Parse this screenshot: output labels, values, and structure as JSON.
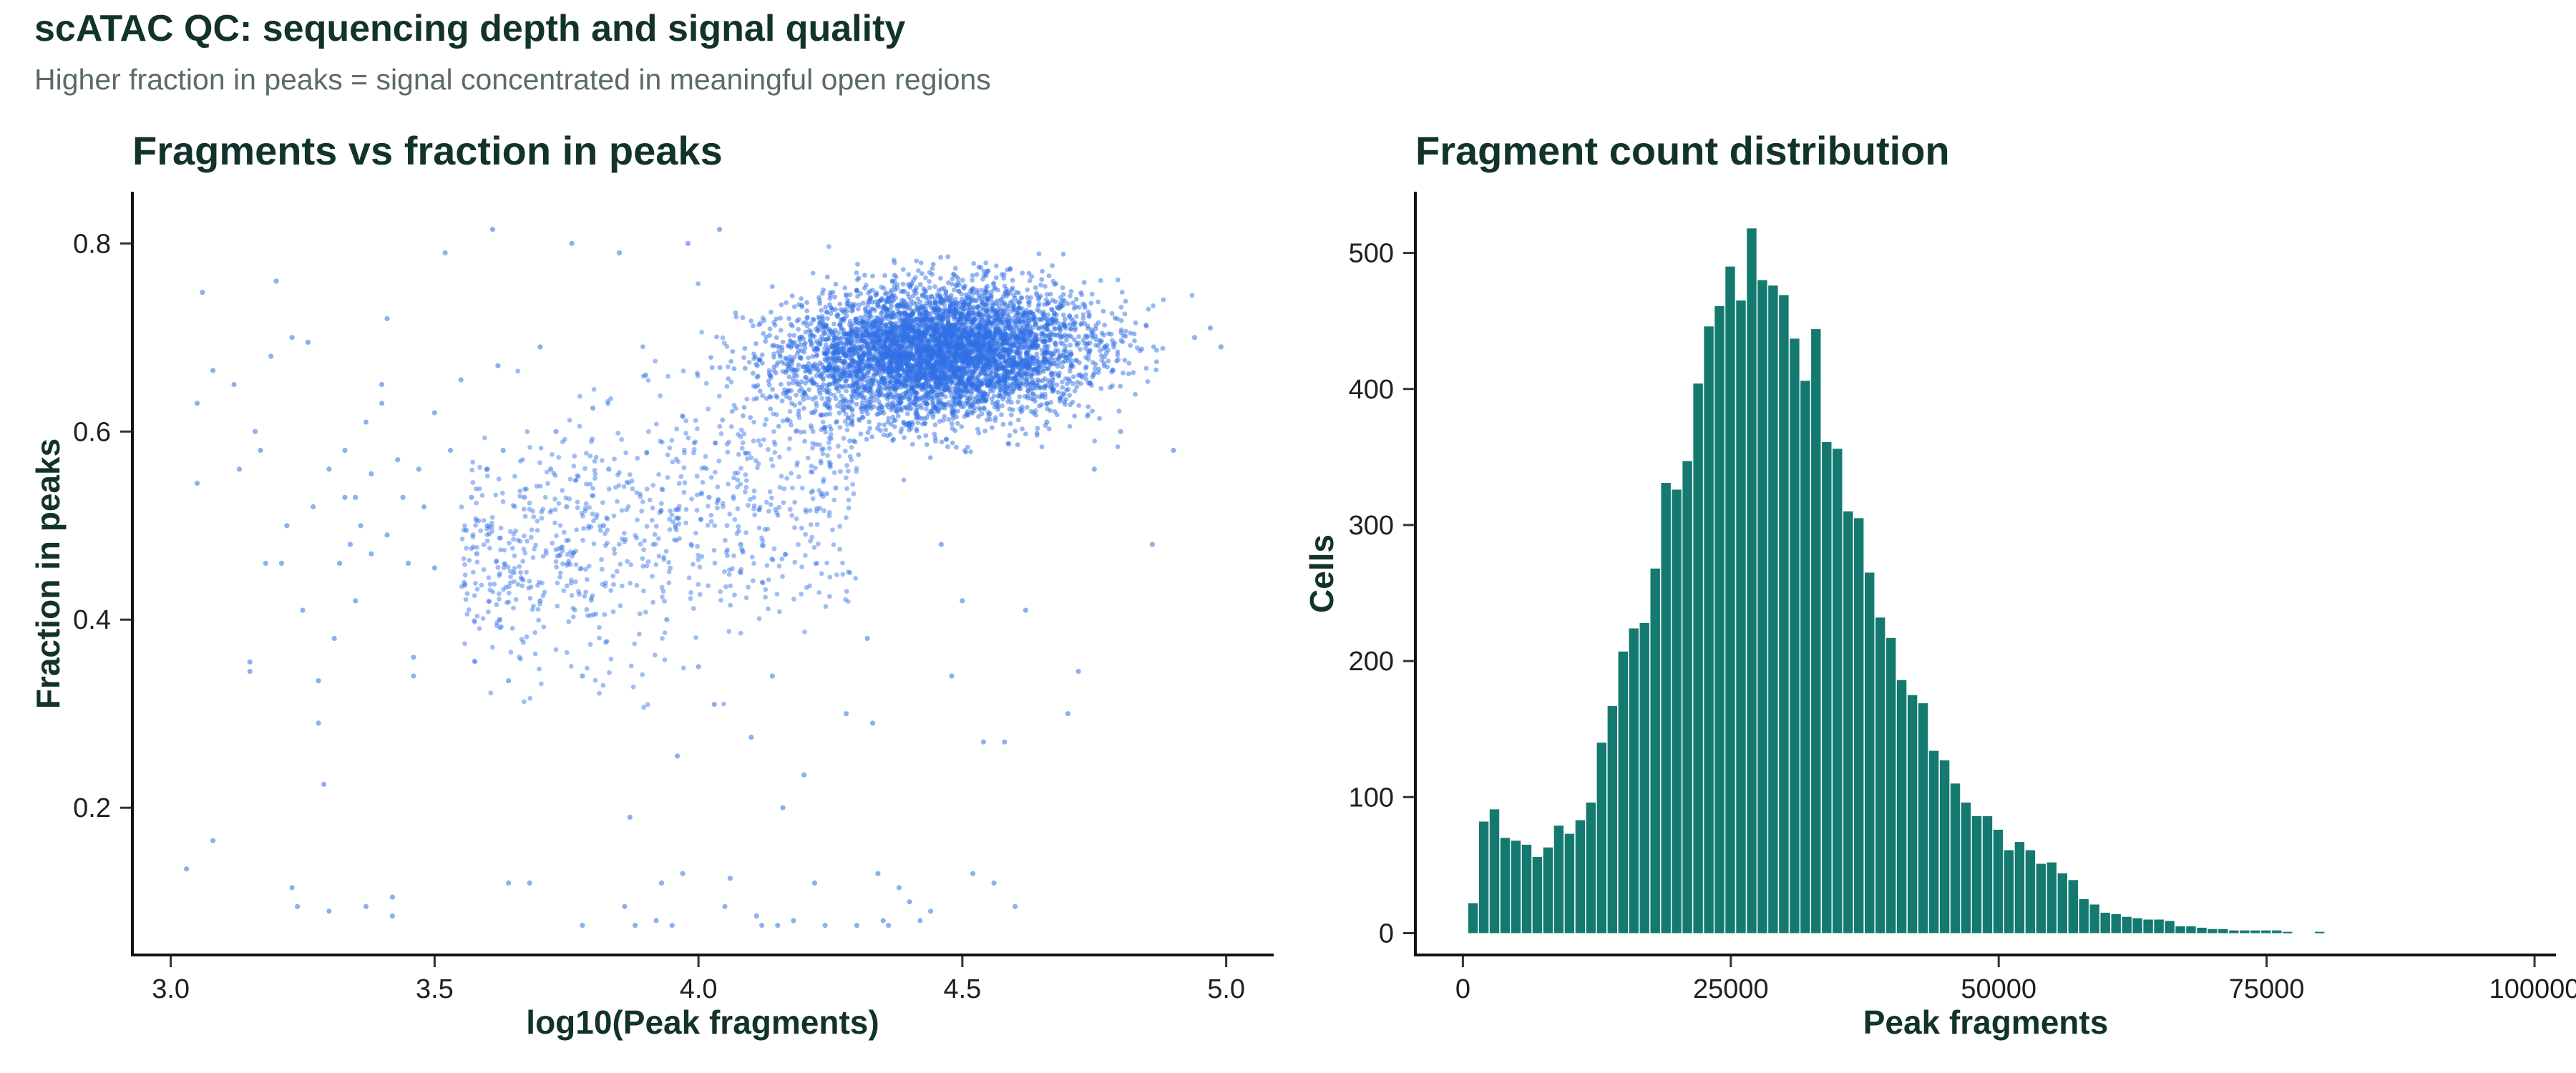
{
  "title": "scATAC QC: sequencing depth and signal quality",
  "subtitle": "Higher fraction in peaks = signal concentrated in meaningful open regions",
  "chart_data": [
    {
      "type": "scatter",
      "title": "Fragments vs fraction in peaks",
      "xlabel": "log10(Peak fragments)",
      "ylabel": "Fraction in peaks",
      "xlim": [
        2.93,
        5.09
      ],
      "ylim": [
        0.045,
        0.855
      ],
      "x_ticks": [
        "3.0",
        "3.5",
        "4.0",
        "4.5",
        "5.0"
      ],
      "y_ticks": [
        "0.2",
        "0.4",
        "0.6",
        "0.8"
      ],
      "point_color": "#2f6fe6",
      "grid": false,
      "points": [
        [
          3.03,
          0.135
        ],
        [
          3.05,
          0.545
        ],
        [
          3.05,
          0.63
        ],
        [
          3.06,
          0.748
        ],
        [
          3.08,
          0.665
        ],
        [
          3.08,
          0.165
        ],
        [
          3.12,
          0.65
        ],
        [
          3.13,
          0.56
        ],
        [
          3.15,
          0.355
        ],
        [
          3.15,
          0.345
        ],
        [
          3.16,
          0.6
        ],
        [
          3.17,
          0.58
        ],
        [
          3.18,
          0.46
        ],
        [
          3.19,
          0.68
        ],
        [
          3.2,
          0.76
        ],
        [
          3.21,
          0.46
        ],
        [
          3.22,
          0.5
        ],
        [
          3.23,
          0.7
        ],
        [
          3.23,
          0.115
        ],
        [
          3.24,
          0.095
        ],
        [
          3.25,
          0.41
        ],
        [
          3.26,
          0.695
        ],
        [
          3.27,
          0.52
        ],
        [
          3.28,
          0.29
        ],
        [
          3.28,
          0.335
        ],
        [
          3.29,
          0.225
        ],
        [
          3.3,
          0.56
        ],
        [
          3.3,
          0.09
        ],
        [
          3.31,
          0.38
        ],
        [
          3.32,
          0.46
        ],
        [
          3.33,
          0.53
        ],
        [
          3.33,
          0.58
        ],
        [
          3.34,
          0.48
        ],
        [
          3.35,
          0.42
        ],
        [
          3.35,
          0.53
        ],
        [
          3.36,
          0.5
        ],
        [
          3.37,
          0.61
        ],
        [
          3.37,
          0.095
        ],
        [
          3.38,
          0.47
        ],
        [
          3.38,
          0.555
        ],
        [
          3.4,
          0.65
        ],
        [
          3.4,
          0.63
        ],
        [
          3.41,
          0.72
        ],
        [
          3.41,
          0.49
        ],
        [
          3.42,
          0.085
        ],
        [
          3.42,
          0.105
        ],
        [
          3.43,
          0.57
        ],
        [
          3.44,
          0.53
        ],
        [
          3.45,
          0.46
        ],
        [
          3.46,
          0.36
        ],
        [
          3.46,
          0.34
        ],
        [
          3.47,
          0.56
        ],
        [
          3.48,
          0.52
        ],
        [
          3.5,
          0.455
        ],
        [
          3.5,
          0.62
        ],
        [
          3.52,
          0.79
        ],
        [
          3.53,
          0.58
        ],
        [
          3.55,
          0.655
        ],
        [
          3.56,
          0.495
        ],
        [
          3.57,
          0.53
        ],
        [
          3.58,
          0.47
        ],
        [
          3.6,
          0.56
        ],
        [
          3.6,
          0.5
        ],
        [
          3.61,
          0.815
        ],
        [
          3.62,
          0.67
        ],
        [
          3.63,
          0.58
        ],
        [
          3.64,
          0.335
        ],
        [
          3.64,
          0.12
        ],
        [
          3.65,
          0.45
        ],
        [
          3.67,
          0.53
        ],
        [
          3.68,
          0.12
        ],
        [
          3.7,
          0.69
        ],
        [
          3.7,
          0.42
        ],
        [
          3.72,
          0.56
        ],
        [
          3.73,
          0.6
        ],
        [
          3.75,
          0.52
        ],
        [
          3.76,
          0.8
        ],
        [
          3.78,
          0.34
        ],
        [
          3.78,
          0.075
        ],
        [
          3.8,
          0.625
        ],
        [
          3.82,
          0.5
        ],
        [
          3.83,
          0.56
        ],
        [
          3.85,
          0.79
        ],
        [
          3.86,
          0.095
        ],
        [
          3.87,
          0.19
        ],
        [
          3.88,
          0.075
        ],
        [
          3.9,
          0.66
        ],
        [
          3.92,
          0.08
        ],
        [
          3.93,
          0.12
        ],
        [
          3.94,
          0.4
        ],
        [
          3.95,
          0.075
        ],
        [
          3.96,
          0.255
        ],
        [
          3.97,
          0.13
        ],
        [
          3.98,
          0.8
        ],
        [
          4.0,
          0.35
        ],
        [
          4.02,
          0.53
        ],
        [
          4.03,
          0.31
        ],
        [
          4.04,
          0.815
        ],
        [
          4.05,
          0.095
        ],
        [
          4.06,
          0.125
        ],
        [
          4.08,
          0.48
        ],
        [
          4.1,
          0.275
        ],
        [
          4.11,
          0.085
        ],
        [
          4.12,
          0.075
        ],
        [
          4.14,
          0.34
        ],
        [
          4.15,
          0.075
        ],
        [
          4.16,
          0.2
        ],
        [
          4.18,
          0.08
        ],
        [
          4.2,
          0.235
        ],
        [
          4.22,
          0.12
        ],
        [
          4.24,
          0.075
        ],
        [
          4.26,
          0.54
        ],
        [
          4.28,
          0.3
        ],
        [
          4.3,
          0.075
        ],
        [
          4.32,
          0.38
        ],
        [
          4.33,
          0.29
        ],
        [
          4.34,
          0.13
        ],
        [
          4.35,
          0.08
        ],
        [
          4.36,
          0.075
        ],
        [
          4.38,
          0.115
        ],
        [
          4.4,
          0.1
        ],
        [
          4.42,
          0.08
        ],
        [
          4.44,
          0.09
        ],
        [
          4.46,
          0.48
        ],
        [
          4.48,
          0.34
        ],
        [
          4.5,
          0.42
        ],
        [
          4.52,
          0.13
        ],
        [
          4.54,
          0.27
        ],
        [
          4.56,
          0.12
        ],
        [
          4.58,
          0.27
        ],
        [
          4.6,
          0.095
        ],
        [
          4.62,
          0.41
        ],
        [
          4.66,
          0.61
        ],
        [
          4.7,
          0.3
        ],
        [
          4.72,
          0.345
        ],
        [
          4.75,
          0.56
        ],
        [
          4.8,
          0.6
        ],
        [
          4.86,
          0.48
        ],
        [
          4.9,
          0.58
        ],
        [
          4.94,
          0.7
        ],
        [
          4.97,
          0.71
        ],
        [
          4.99,
          0.69
        ]
      ],
      "cloud": {
        "description_values": "Dense cluster of cells",
        "center_x": 4.46,
        "center_y": 0.685,
        "spread_x": 0.14,
        "spread_y": 0.035,
        "count": 5200
      }
    },
    {
      "type": "bar",
      "title": "Fragment count distribution",
      "xlabel": "Peak fragments",
      "ylabel": "Cells",
      "xlim": [
        -4300,
        102000
      ],
      "ylim": [
        -15,
        545
      ],
      "x_ticks": [
        0,
        25000,
        50000,
        75000,
        100000
      ],
      "x_tick_labels": [
        "0",
        "25000",
        "50000",
        "75000",
        "100000"
      ],
      "y_ticks": [
        0,
        100,
        200,
        300,
        400,
        500
      ],
      "y_tick_labels": [
        "0",
        "100",
        "200",
        "300",
        "400",
        "500"
      ],
      "bar_color": "#147a70",
      "bin_width": 1000,
      "bin_start": 500,
      "values": [
        22,
        82,
        91,
        70,
        68,
        65,
        56,
        63,
        79,
        73,
        83,
        96,
        140,
        167,
        207,
        224,
        228,
        268,
        331,
        326,
        347,
        404,
        446,
        461,
        490,
        465,
        518,
        480,
        476,
        469,
        437,
        406,
        444,
        361,
        356,
        310,
        305,
        265,
        232,
        217,
        186,
        175,
        169,
        134,
        127,
        110,
        96,
        86,
        86,
        76,
        61,
        67,
        61,
        51,
        52,
        44,
        39,
        25,
        21,
        15,
        14,
        12,
        11,
        10,
        10,
        9,
        5,
        5,
        4,
        3,
        3,
        2,
        2,
        2,
        2,
        2,
        1,
        0,
        0,
        1,
        0,
        0,
        0,
        0,
        0,
        0,
        0,
        0,
        0,
        0,
        0,
        0,
        0,
        0,
        0,
        0,
        0,
        0
      ]
    }
  ]
}
